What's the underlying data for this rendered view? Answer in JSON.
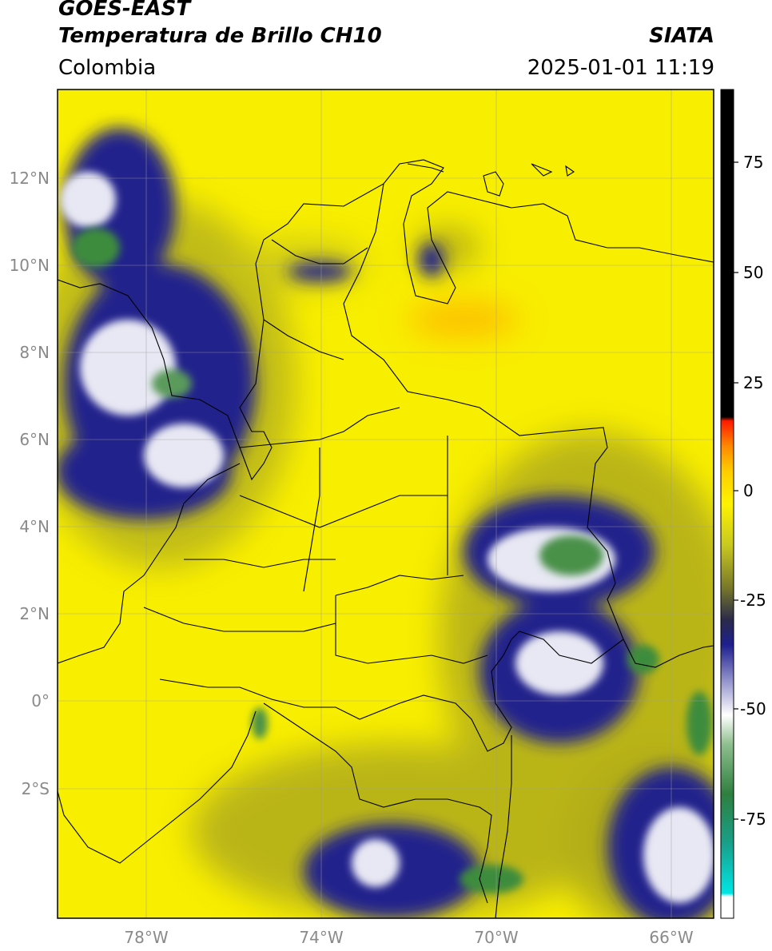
{
  "header": {
    "satellite": "GOES-EAST",
    "product": "Temperatura de Brillo CH10",
    "agency": "SIATA",
    "region": "Colombia",
    "datetime": "2025-01-01 11:19"
  },
  "map": {
    "lon_range": [
      -80,
      -65
    ],
    "lat_range": [
      -5,
      14
    ],
    "lat_labels": [
      "12°N",
      "10°N",
      "8°N",
      "6°N",
      "4°N",
      "2°N",
      "0°",
      "2°S"
    ],
    "lon_labels": [
      "78°W",
      "74°W",
      "70°W",
      "66°W"
    ],
    "grid": true
  },
  "colorbar": {
    "range": [
      -95,
      90
    ],
    "tick_labels": [
      "75",
      "50",
      "25",
      "0",
      "-25",
      "-50",
      "-75"
    ],
    "colors": {
      "black": "#000000",
      "red": "#ff1a00",
      "orange": "#ff9a00",
      "yellow": "#fff200",
      "olive": "#9c9c1c",
      "navy": "#1a1a8c",
      "white": "#ffffff",
      "green": "#3c8c3c",
      "cyan": "#00e0e0"
    }
  }
}
